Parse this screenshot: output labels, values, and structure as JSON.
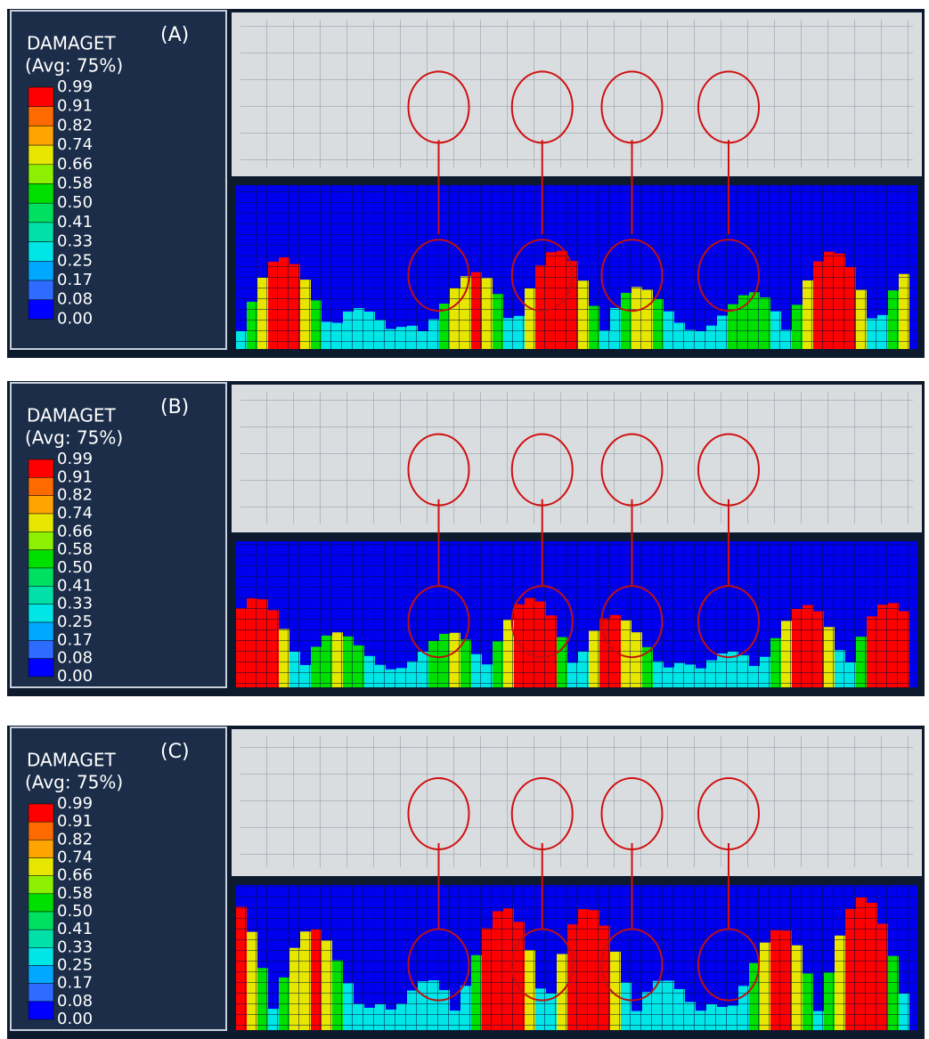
{
  "panels": [
    {
      "label": "(A)",
      "legend_title": "DAMAGET",
      "legend_subtitle": "(Avg: 75%)",
      "levels": [
        "0.99",
        "0.91",
        "0.82",
        "0.74",
        "0.66",
        "0.58",
        "0.50",
        "0.41",
        "0.33",
        "0.25",
        "0.17",
        "0.08",
        "0.00"
      ]
    },
    {
      "label": "(B)",
      "legend_title": "DAMAGET",
      "legend_subtitle": "(Avg: 75%)",
      "levels": [
        "0.99",
        "0.91",
        "0.82",
        "0.74",
        "0.66",
        "0.58",
        "0.50",
        "0.41",
        "0.33",
        "0.25",
        "0.17",
        "0.08",
        "0.00"
      ]
    },
    {
      "label": "(C)",
      "legend_title": "DAMAGET",
      "legend_subtitle": "(Avg: 75%)",
      "levels": [
        "0.99",
        "0.91",
        "0.82",
        "0.74",
        "0.66",
        "0.58",
        "0.50",
        "0.41",
        "0.33",
        "0.25",
        "0.17",
        "0.08",
        "0.00"
      ]
    }
  ],
  "legend_colors": [
    "#ff0000",
    "#ff6a00",
    "#ffa500",
    "#e6e600",
    "#8cf000",
    "#00e000",
    "#00e060",
    "#00e0a8",
    "#00e6e6",
    "#00a8ff",
    "#2d6cff",
    "#0000ff"
  ]
}
